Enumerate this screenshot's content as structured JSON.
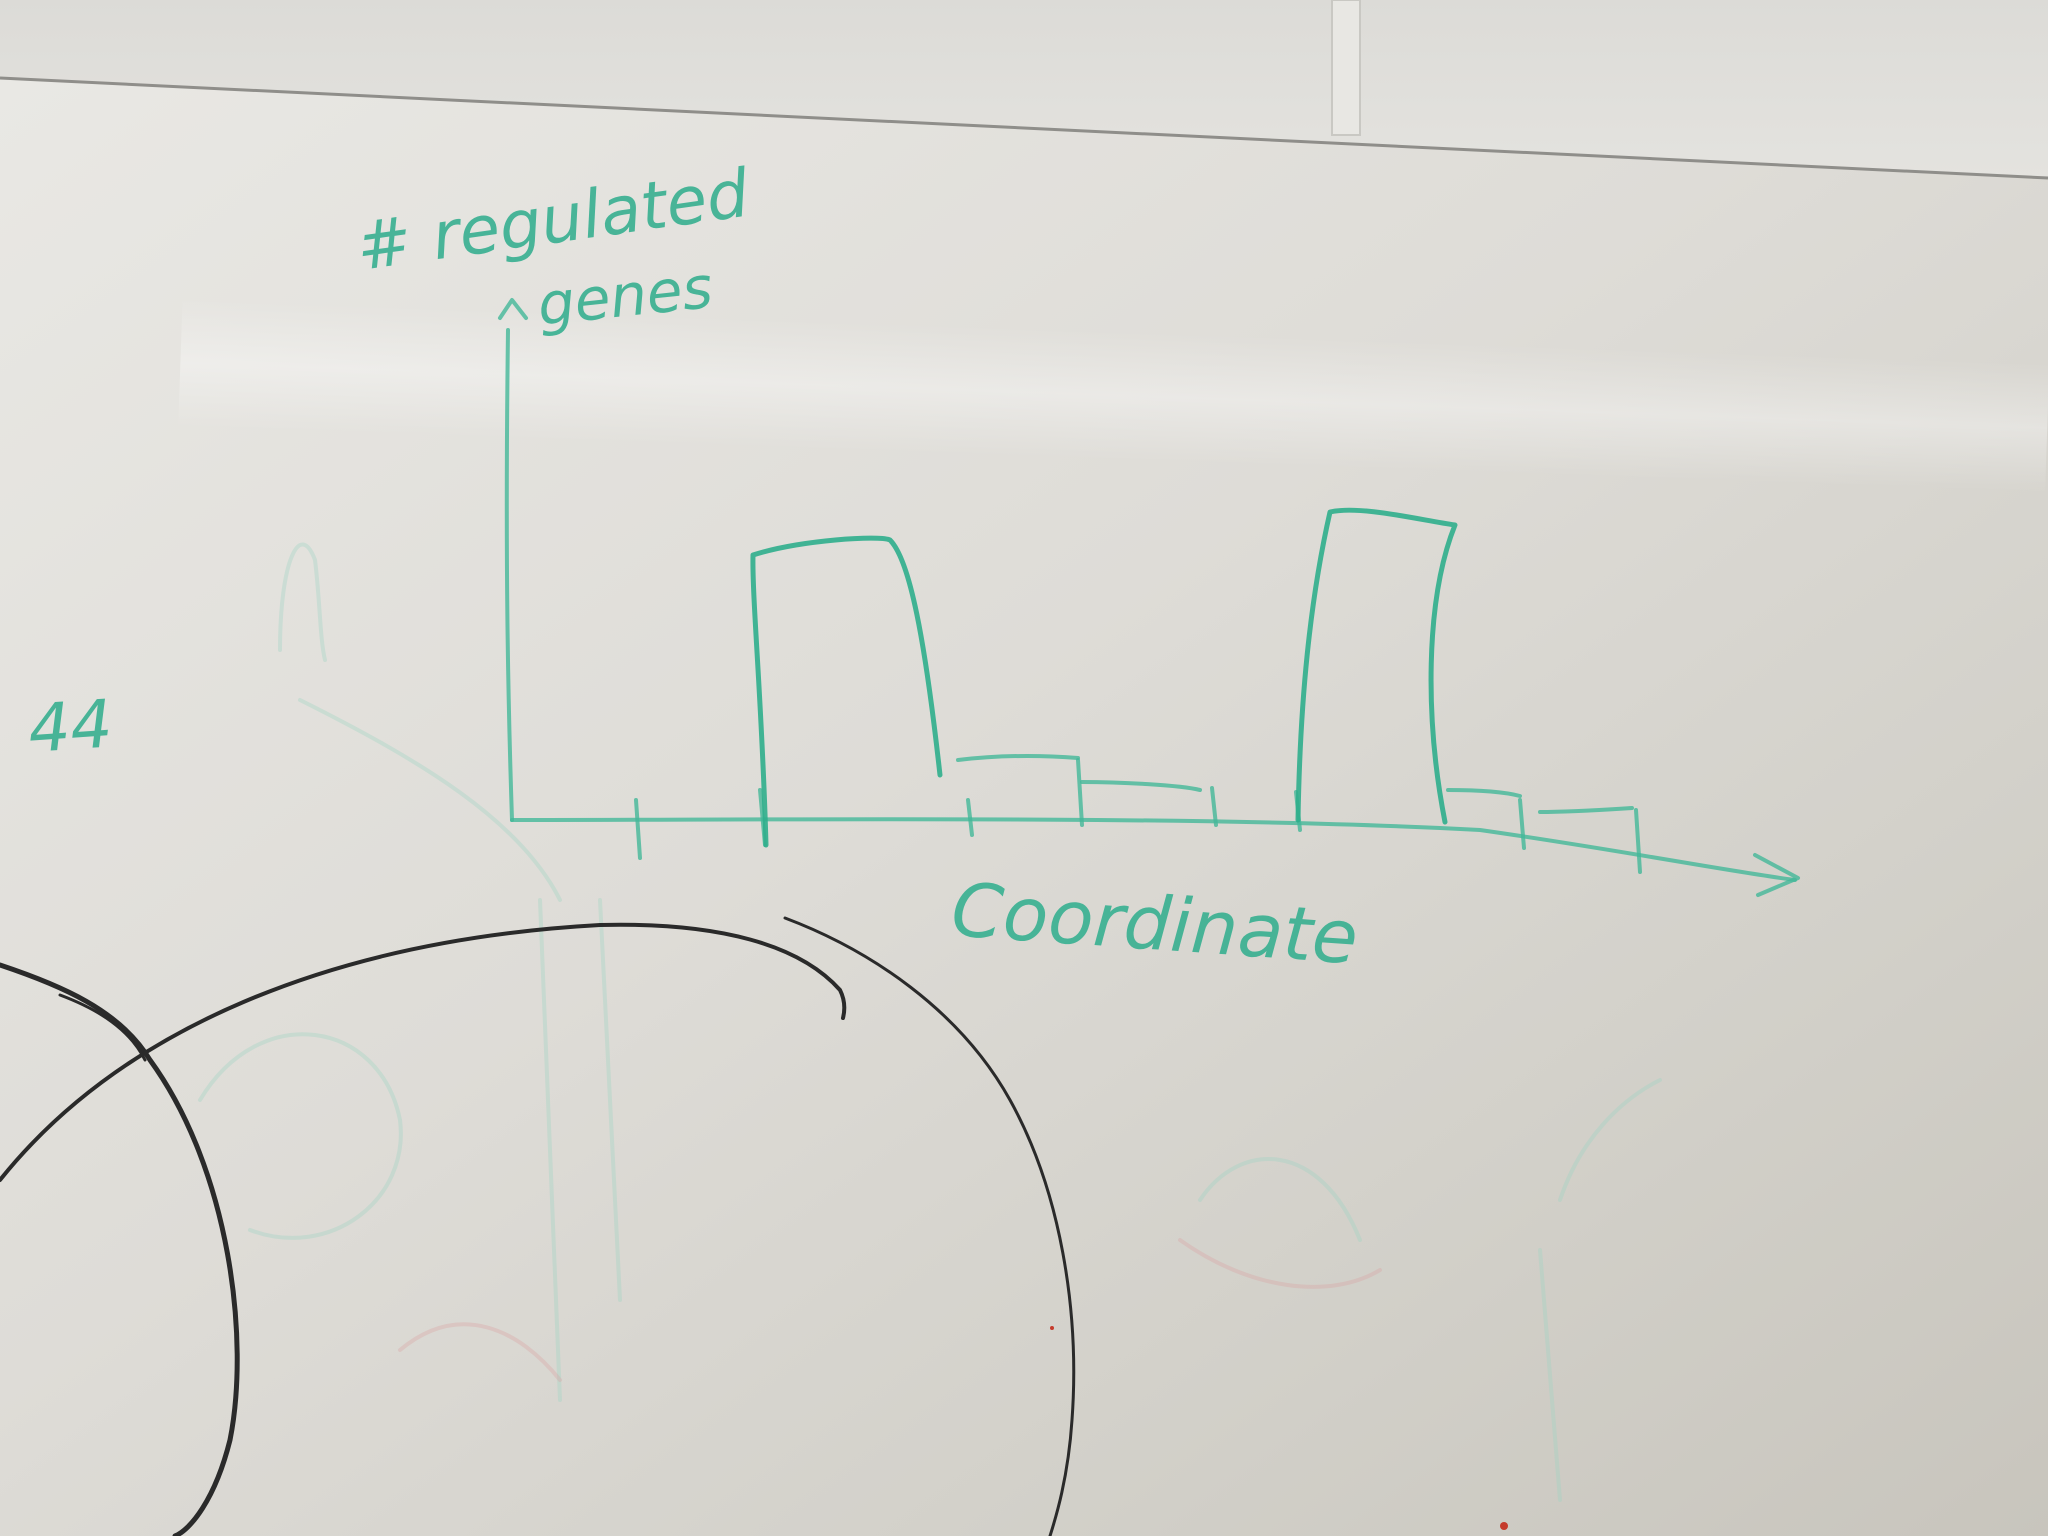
{
  "sketch": {
    "y_axis_label_line1": "# regulated",
    "y_axis_label_line2": "genes",
    "x_axis_label": "Coordinate",
    "left_edge_text": "44"
  },
  "colors": {
    "marker_green": "#2fae8c",
    "black_marker": "#2a2a2a",
    "board_white": "#e6e5e1",
    "wall": "#d4d2cc"
  }
}
